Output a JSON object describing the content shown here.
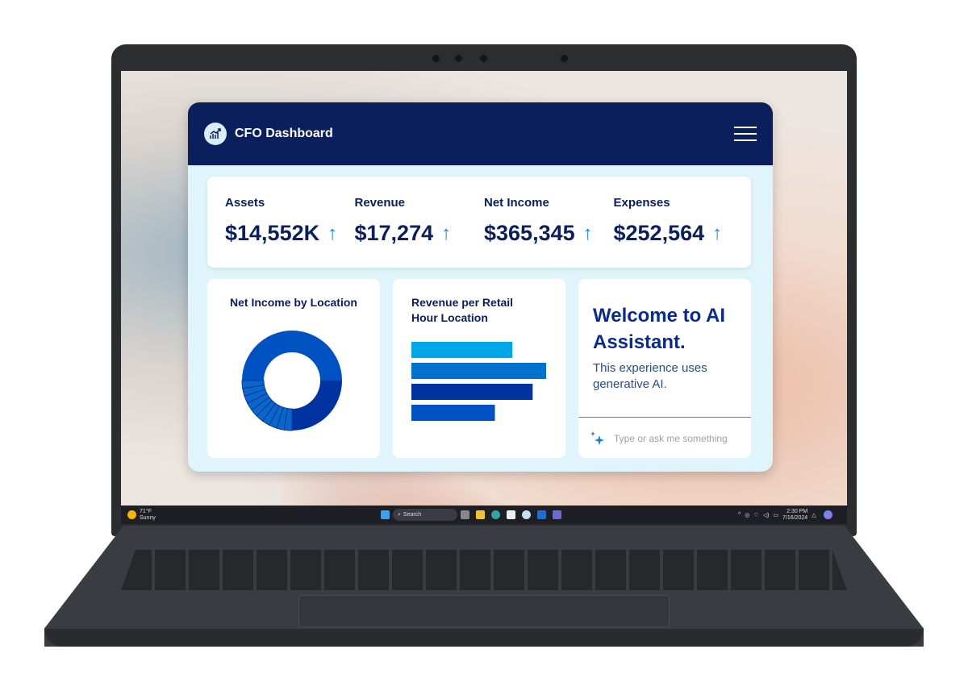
{
  "dashboard": {
    "title": "CFO Dashboard",
    "logo_icon": "chart-growth-icon",
    "menu_icon": "hamburger-menu-icon"
  },
  "kpis": [
    {
      "label": "Assets",
      "value": "$14,552K",
      "trend": "up"
    },
    {
      "label": "Revenue",
      "value": "$17,274",
      "trend": "up"
    },
    {
      "label": "Net Income",
      "value": "$365,345",
      "trend": "up"
    },
    {
      "label": "Expenses",
      "value": "$252,564",
      "trend": "up"
    }
  ],
  "arrow_glyph": "↑",
  "chart_data": [
    {
      "type": "pie",
      "title": "Net Income by Location",
      "donut": true,
      "values": [
        50,
        25,
        2.5,
        2.5,
        2.5,
        2.5,
        2.5,
        2.5,
        2.5,
        2.5,
        2.5,
        2.5
      ],
      "colors": [
        "#0052c2",
        "#0033a0",
        "#0a66c8"
      ]
    },
    {
      "type": "bar",
      "orientation": "horizontal",
      "title": "Revenue per Retail Hour Location",
      "values": [
        75,
        100,
        90,
        62
      ],
      "colors": [
        "#00a6e8",
        "#0072cc",
        "#0033a0",
        "#0052c2"
      ]
    }
  ],
  "ai": {
    "title": "Welcome to AI Assistant.",
    "subtitle": "This experience uses generative AI.",
    "placeholder": "Type or ask me something",
    "icon": "sparkle-icon"
  },
  "taskbar": {
    "temp": "71°F",
    "weather": "Sunny",
    "search": "Search",
    "time": "2:30 PM",
    "date": "7/16/2024"
  },
  "colors": {
    "header": "#0a1f5c",
    "panel": "#dff4fb",
    "accent": "#1a8ad4"
  }
}
